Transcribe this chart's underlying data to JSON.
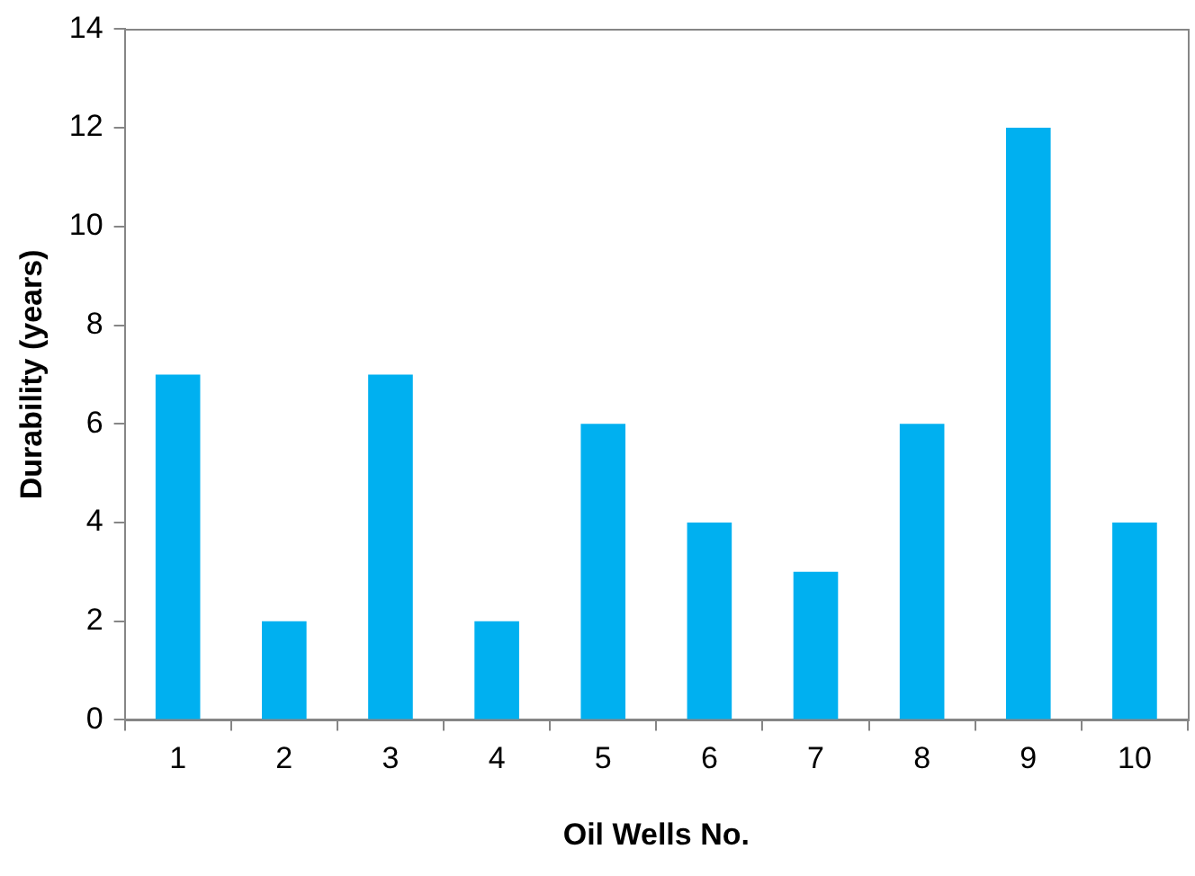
{
  "chart_data": {
    "type": "bar",
    "xlabel": "Oil Wells No.",
    "ylabel": "Durability (years)",
    "categories": [
      "1",
      "2",
      "3",
      "4",
      "5",
      "6",
      "7",
      "8",
      "9",
      "10"
    ],
    "values": [
      7,
      2,
      7,
      2,
      6,
      4,
      3,
      6,
      12,
      4
    ],
    "color": "#00b0f0",
    "ylim": [
      0,
      14
    ],
    "yticks": [
      0,
      2,
      4,
      6,
      8,
      10,
      12,
      14
    ],
    "grid": false,
    "legend": false
  }
}
